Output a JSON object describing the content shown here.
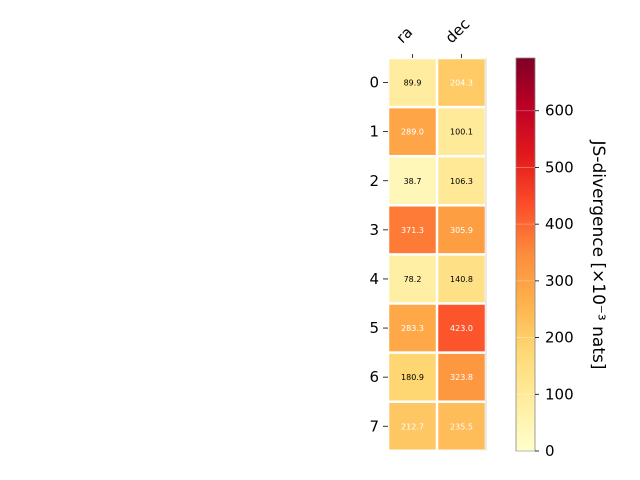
{
  "chart_data": {
    "type": "heatmap",
    "columns": [
      "ra",
      "dec"
    ],
    "rows": [
      "0",
      "1",
      "2",
      "3",
      "4",
      "5",
      "6",
      "7"
    ],
    "values": [
      [
        89.9,
        204.3
      ],
      [
        289.0,
        100.1
      ],
      [
        38.7,
        106.3
      ],
      [
        371.3,
        305.9
      ],
      [
        78.2,
        140.8
      ],
      [
        283.3,
        423.0
      ],
      [
        180.9,
        323.8
      ],
      [
        212.7,
        235.5
      ]
    ],
    "cell_labels": [
      [
        "89.9",
        "204.3"
      ],
      [
        "289.0",
        "100.1"
      ],
      [
        "38.7",
        "106.3"
      ],
      [
        "371.3",
        "305.9"
      ],
      [
        "78.2",
        "140.8"
      ],
      [
        "283.3",
        "423.0"
      ],
      [
        "180.9",
        "323.8"
      ],
      [
        "212.7",
        "235.5"
      ]
    ],
    "colorbar": {
      "label": "JS-divergence [×10⁻³ nats]",
      "range": [
        0,
        693
      ],
      "ticks": [
        0,
        100,
        200,
        300,
        400,
        500,
        600
      ],
      "tick_labels": [
        "0",
        "100",
        "200",
        "300",
        "400",
        "500",
        "600"
      ],
      "colormap": "YlOrRd"
    },
    "grid": false,
    "legend": "none"
  }
}
